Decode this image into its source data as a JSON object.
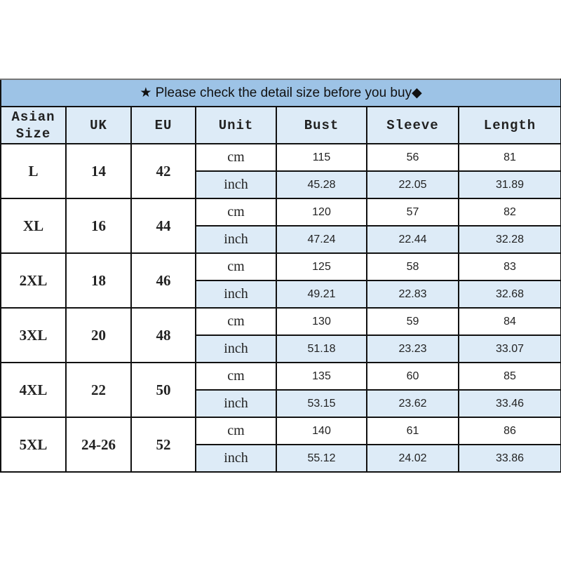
{
  "title": "★ Please check the detail size before you buy◆",
  "headers": [
    "Asian Size",
    "UK",
    "EU",
    "Unit",
    "Bust",
    "Sleeve",
    "Length"
  ],
  "units": {
    "cm": "cm",
    "inch": "inch"
  },
  "rows": [
    {
      "size": "L",
      "uk": "14",
      "eu": "42",
      "cm": [
        "115",
        "56",
        "81"
      ],
      "inch": [
        "45.28",
        "22.05",
        "31.89"
      ]
    },
    {
      "size": "XL",
      "uk": "16",
      "eu": "44",
      "cm": [
        "120",
        "57",
        "82"
      ],
      "inch": [
        "47.24",
        "22.44",
        "32.28"
      ]
    },
    {
      "size": "2XL",
      "uk": "18",
      "eu": "46",
      "cm": [
        "125",
        "58",
        "83"
      ],
      "inch": [
        "49.21",
        "22.83",
        "32.68"
      ]
    },
    {
      "size": "3XL",
      "uk": "20",
      "eu": "48",
      "cm": [
        "130",
        "59",
        "84"
      ],
      "inch": [
        "51.18",
        "23.23",
        "33.07"
      ]
    },
    {
      "size": "4XL",
      "uk": "22",
      "eu": "50",
      "cm": [
        "135",
        "60",
        "85"
      ],
      "inch": [
        "53.15",
        "23.62",
        "33.46"
      ]
    },
    {
      "size": "5XL",
      "uk": "24-26",
      "eu": "52",
      "cm": [
        "140",
        "61",
        "86"
      ],
      "inch": [
        "55.12",
        "24.02",
        "33.86"
      ]
    }
  ],
  "colors": {
    "title_bg": "#9dc3e6",
    "header_bg": "#ddebf7",
    "inch_row_bg": "#ddebf7"
  }
}
